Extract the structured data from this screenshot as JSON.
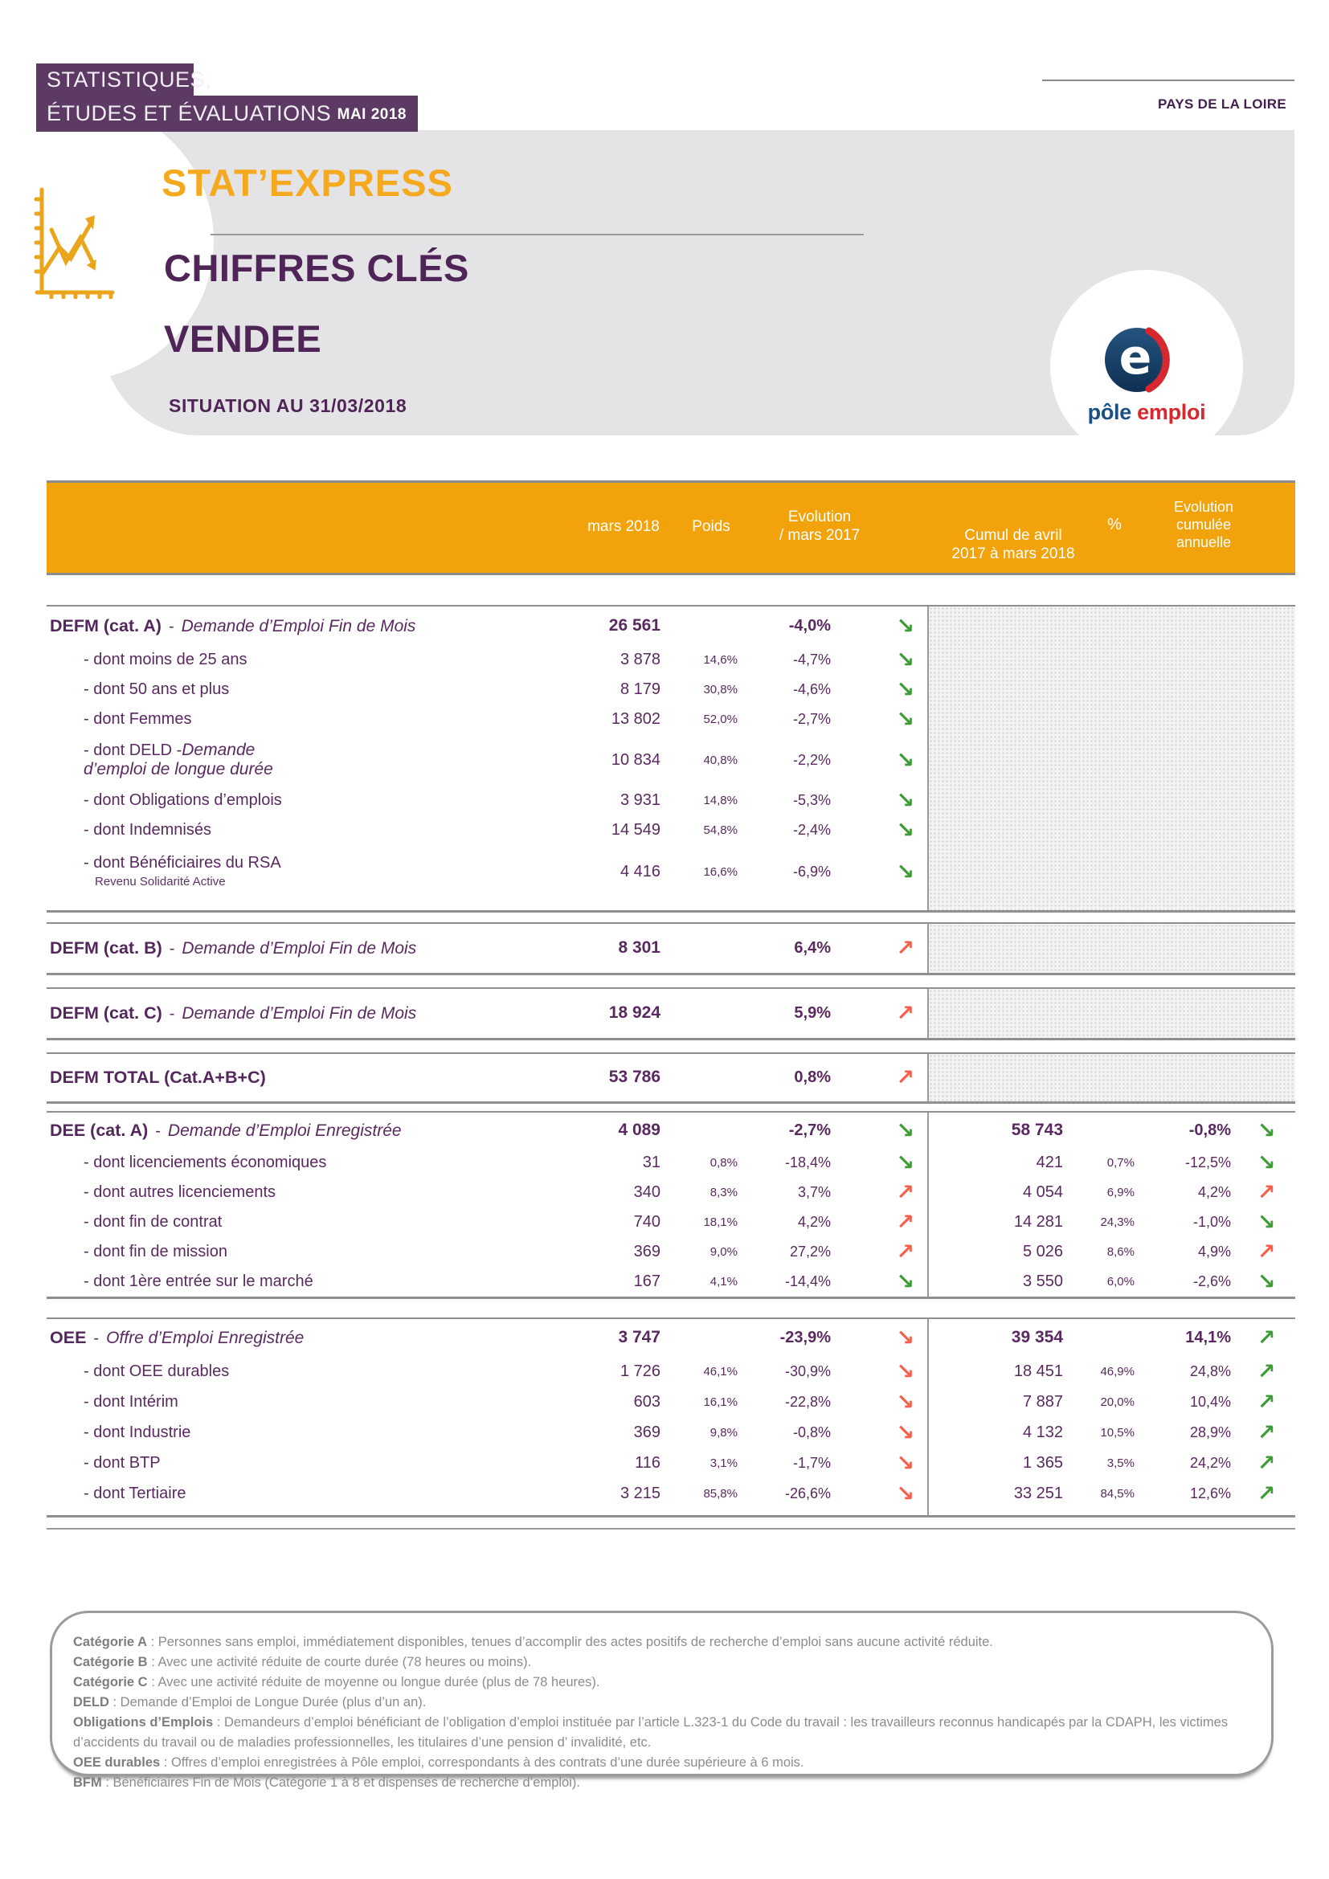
{
  "page": {
    "banner": {
      "line1": "STATISTIQUES,",
      "line2": "ÉTUDES ET ÉVALUATIONS",
      "issue": "MAI 2018"
    },
    "region_label": "PAYS DE LA LOIRE",
    "brand": "STAT’EXPRESS",
    "title1": "CHIFFRES CLÉS",
    "title2": "VENDEE",
    "situation": "SITUATION  AU 31/03/2018",
    "logo": {
      "word1": "pôle",
      "word2": "emploi"
    }
  },
  "colors": {
    "banner_purple": "#5C3A64",
    "title_purple": "#4F2456",
    "table_purple": "#5A2960",
    "header_orange": "#F2A30B",
    "brand_orange": "#F5A91E",
    "trend_green": "#3E9B35",
    "trend_red": "#F4604B",
    "logo_navy": "#16395F",
    "logo_blue": "#1C4F82",
    "logo_red": "#D7282F"
  },
  "table": {
    "headers": {
      "month": "mars 2018",
      "weight": "Poids",
      "evolution_l1": "Evolution",
      "evolution_l2": "/ mars 2017",
      "cumul_l1": "Cumul de avril",
      "cumul_l2": "2017 à mars 2018",
      "pct": "%",
      "evolcum_l1": "Evolution",
      "evolcum_l2": "cumulée",
      "evolcum_l3": "annuelle"
    },
    "sections": [
      {
        "name": "defm-a",
        "no_cumul_data": true,
        "rows": [
          {
            "style": "head",
            "label": "DEFM (cat. A)",
            "sep": "-",
            "italic": "Demande d’Emploi Fin de Mois",
            "value": "26 561",
            "weight": "",
            "evol": "-4,0%",
            "trend1": "down-green",
            "cumul": "",
            "pct": "",
            "evolcum": "",
            "trend2": null
          },
          {
            "style": "sub",
            "label": "- dont moins de 25 ans",
            "value": "3 878",
            "weight": "14,6%",
            "evol": "-4,7%",
            "trend1": "down-green",
            "cumul": "",
            "pct": "",
            "evolcum": "",
            "trend2": null
          },
          {
            "style": "sub",
            "label": "- dont 50 ans et plus",
            "value": "8 179",
            "weight": "30,8%",
            "evol": "-4,6%",
            "trend1": "down-green",
            "cumul": "",
            "pct": "",
            "evolcum": "",
            "trend2": null
          },
          {
            "style": "sub",
            "label": "- dont Femmes",
            "value": "13 802",
            "weight": "52,0%",
            "evol": "-2,7%",
            "trend1": "down-green",
            "cumul": "",
            "pct": "",
            "evolcum": "",
            "trend2": null
          },
          {
            "style": "sub",
            "narrow": true,
            "label": "- dont DELD -",
            "italic": "Demande d’emploi de longue durée",
            "value": "10 834",
            "weight": "40,8%",
            "evol": "-2,2%",
            "trend1": "down-green",
            "cumul": "",
            "pct": "",
            "evolcum": "",
            "trend2": null
          },
          {
            "style": "sub",
            "label": "- dont Obligations d’emplois",
            "value": "3 931",
            "weight": "14,8%",
            "evol": "-5,3%",
            "trend1": "down-green",
            "cumul": "",
            "pct": "",
            "evolcum": "",
            "trend2": null
          },
          {
            "style": "sub",
            "label": "- dont Indemnisés",
            "value": "14 549",
            "weight": "54,8%",
            "evol": "-2,4%",
            "trend1": "down-green",
            "cumul": "",
            "pct": "",
            "evolcum": "",
            "trend2": null
          },
          {
            "style": "sub",
            "label": "- dont Bénéficiaires du RSA",
            "note": "Revenu Solidarité Active",
            "value": "4 416",
            "weight": "16,6%",
            "evol": "-6,9%",
            "trend1": "down-green",
            "cumul": "",
            "pct": "",
            "evolcum": "",
            "trend2": null
          }
        ]
      },
      {
        "name": "defm-b",
        "no_cumul_data": true,
        "rows": [
          {
            "style": "head",
            "label": "DEFM (cat. B)",
            "sep": "-",
            "italic": "Demande d’Emploi Fin de Mois",
            "value": "8 301",
            "weight": "",
            "evol": "6,4%",
            "trend1": "up-red",
            "cumul": "",
            "pct": "",
            "evolcum": "",
            "trend2": null
          }
        ]
      },
      {
        "name": "defm-c",
        "no_cumul_data": true,
        "rows": [
          {
            "style": "head",
            "label": "DEFM (cat. C)",
            "sep": "-",
            "italic": "Demande d’Emploi Fin de Mois",
            "value": "18 924",
            "weight": "",
            "evol": "5,9%",
            "trend1": "up-red",
            "cumul": "",
            "pct": "",
            "evolcum": "",
            "trend2": null
          }
        ]
      },
      {
        "name": "defm-total",
        "no_cumul_data": true,
        "rows": [
          {
            "style": "head",
            "label": "DEFM TOTAL (Cat.A+B+C)",
            "value": "53 786",
            "weight": "",
            "evol": "0,8%",
            "trend1": "up-red",
            "cumul": "",
            "pct": "",
            "evolcum": "",
            "trend2": null
          }
        ]
      },
      {
        "name": "dee",
        "no_cumul_data": false,
        "rows": [
          {
            "style": "head",
            "label": "DEE (cat. A)",
            "sep": "-",
            "italic": "Demande d’Emploi Enregistrée",
            "value": "4 089",
            "weight": "",
            "evol": "-2,7%",
            "trend1": "down-green",
            "cumul": "58 743",
            "pct": "",
            "evolcum": "-0,8%",
            "trend2": "down-green"
          },
          {
            "style": "sub",
            "label": "- dont licenciements économiques",
            "value": "31",
            "weight": "0,8%",
            "evol": "-18,4%",
            "trend1": "down-green",
            "cumul": "421",
            "pct": "0,7%",
            "evolcum": "-12,5%",
            "trend2": "down-green"
          },
          {
            "style": "sub",
            "label": "- dont autres licenciements",
            "value": "340",
            "weight": "8,3%",
            "evol": "3,7%",
            "trend1": "up-red",
            "cumul": "4 054",
            "pct": "6,9%",
            "evolcum": "4,2%",
            "trend2": "up-red"
          },
          {
            "style": "sub",
            "label": "- dont fin de contrat",
            "value": "740",
            "weight": "18,1%",
            "evol": "4,2%",
            "trend1": "up-red",
            "cumul": "14 281",
            "pct": "24,3%",
            "evolcum": "-1,0%",
            "trend2": "down-green"
          },
          {
            "style": "sub",
            "label": "- dont fin de mission",
            "value": "369",
            "weight": "9,0%",
            "evol": "27,2%",
            "trend1": "up-red",
            "cumul": "5 026",
            "pct": "8,6%",
            "evolcum": "4,9%",
            "trend2": "up-red"
          },
          {
            "style": "sub",
            "label": "- dont 1ère entrée sur le marché",
            "value": "167",
            "weight": "4,1%",
            "evol": "-14,4%",
            "trend1": "down-green",
            "cumul": "3 550",
            "pct": "6,0%",
            "evolcum": "-2,6%",
            "trend2": "down-green"
          }
        ]
      },
      {
        "name": "oee",
        "no_cumul_data": false,
        "rows": [
          {
            "style": "head",
            "label": "OEE",
            "sep": "-",
            "italic": "Offre d’Emploi Enregistrée",
            "value": "3 747",
            "weight": "",
            "evol": "-23,9%",
            "trend1": "down-red",
            "cumul": "39 354",
            "pct": "",
            "evolcum": "14,1%",
            "trend2": "up-green"
          },
          {
            "style": "sub",
            "label": "- dont OEE durables",
            "value": "1 726",
            "weight": "46,1%",
            "evol": "-30,9%",
            "trend1": "down-red",
            "cumul": "18 451",
            "pct": "46,9%",
            "evolcum": "24,8%",
            "trend2": "up-green"
          },
          {
            "style": "sub",
            "label": "- dont Intérim",
            "value": "603",
            "weight": "16,1%",
            "evol": "-22,8%",
            "trend1": "down-red",
            "cumul": "7 887",
            "pct": "20,0%",
            "evolcum": "10,4%",
            "trend2": "up-green"
          },
          {
            "style": "sub",
            "label": "- dont Industrie",
            "value": "369",
            "weight": "9,8%",
            "evol": "-0,8%",
            "trend1": "down-red",
            "cumul": "4 132",
            "pct": "10,5%",
            "evolcum": "28,9%",
            "trend2": "up-green"
          },
          {
            "style": "sub",
            "label": "- dont BTP",
            "value": "116",
            "weight": "3,1%",
            "evol": "-1,7%",
            "trend1": "down-red",
            "cumul": "1 365",
            "pct": "3,5%",
            "evolcum": "24,2%",
            "trend2": "up-green"
          },
          {
            "style": "sub",
            "label": "- dont Tertiaire",
            "value": "3 215",
            "weight": "85,8%",
            "evol": "-26,6%",
            "trend1": "down-red",
            "cumul": "33 251",
            "pct": "84,5%",
            "evolcum": "12,6%",
            "trend2": "up-green"
          }
        ]
      }
    ]
  },
  "notes": [
    {
      "term": "Catégorie A",
      "text": " : Personnes sans emploi, immédiatement disponibles, tenues d’accomplir des actes positifs de recherche d’emploi sans aucune activité réduite."
    },
    {
      "term": "Catégorie B",
      "text": " : Avec une activité réduite de courte durée (78 heures ou moins)."
    },
    {
      "term": "Catégorie C",
      "text": " : Avec une activité réduite de moyenne ou longue durée (plus de 78 heures)."
    },
    {
      "term": "DELD",
      "text": " : Demande d’Emploi de Longue Durée (plus d’un an)."
    },
    {
      "term": "Obligations d’Emplois",
      "text": " : Demandeurs d’emploi bénéficiant de l’obligation d’emploi instituée par l’article L.323-1 du Code du travail : les travailleurs reconnus handicapés par la CDAPH, les victimes d’accidents du travail ou de maladies professionnelles, les titulaires d’une pension d’ invalidité, etc."
    },
    {
      "term": "OEE durables",
      "text": " : Offres d’emploi enregistrées à Pôle emploi, correspondants à des contrats d’une durée supérieure à 6 mois."
    },
    {
      "term": "BFM",
      "text": " : Bénéficiaires Fin de Mois (Catégorie 1 à 8 et dispensés de recherche d’emploi)."
    }
  ]
}
